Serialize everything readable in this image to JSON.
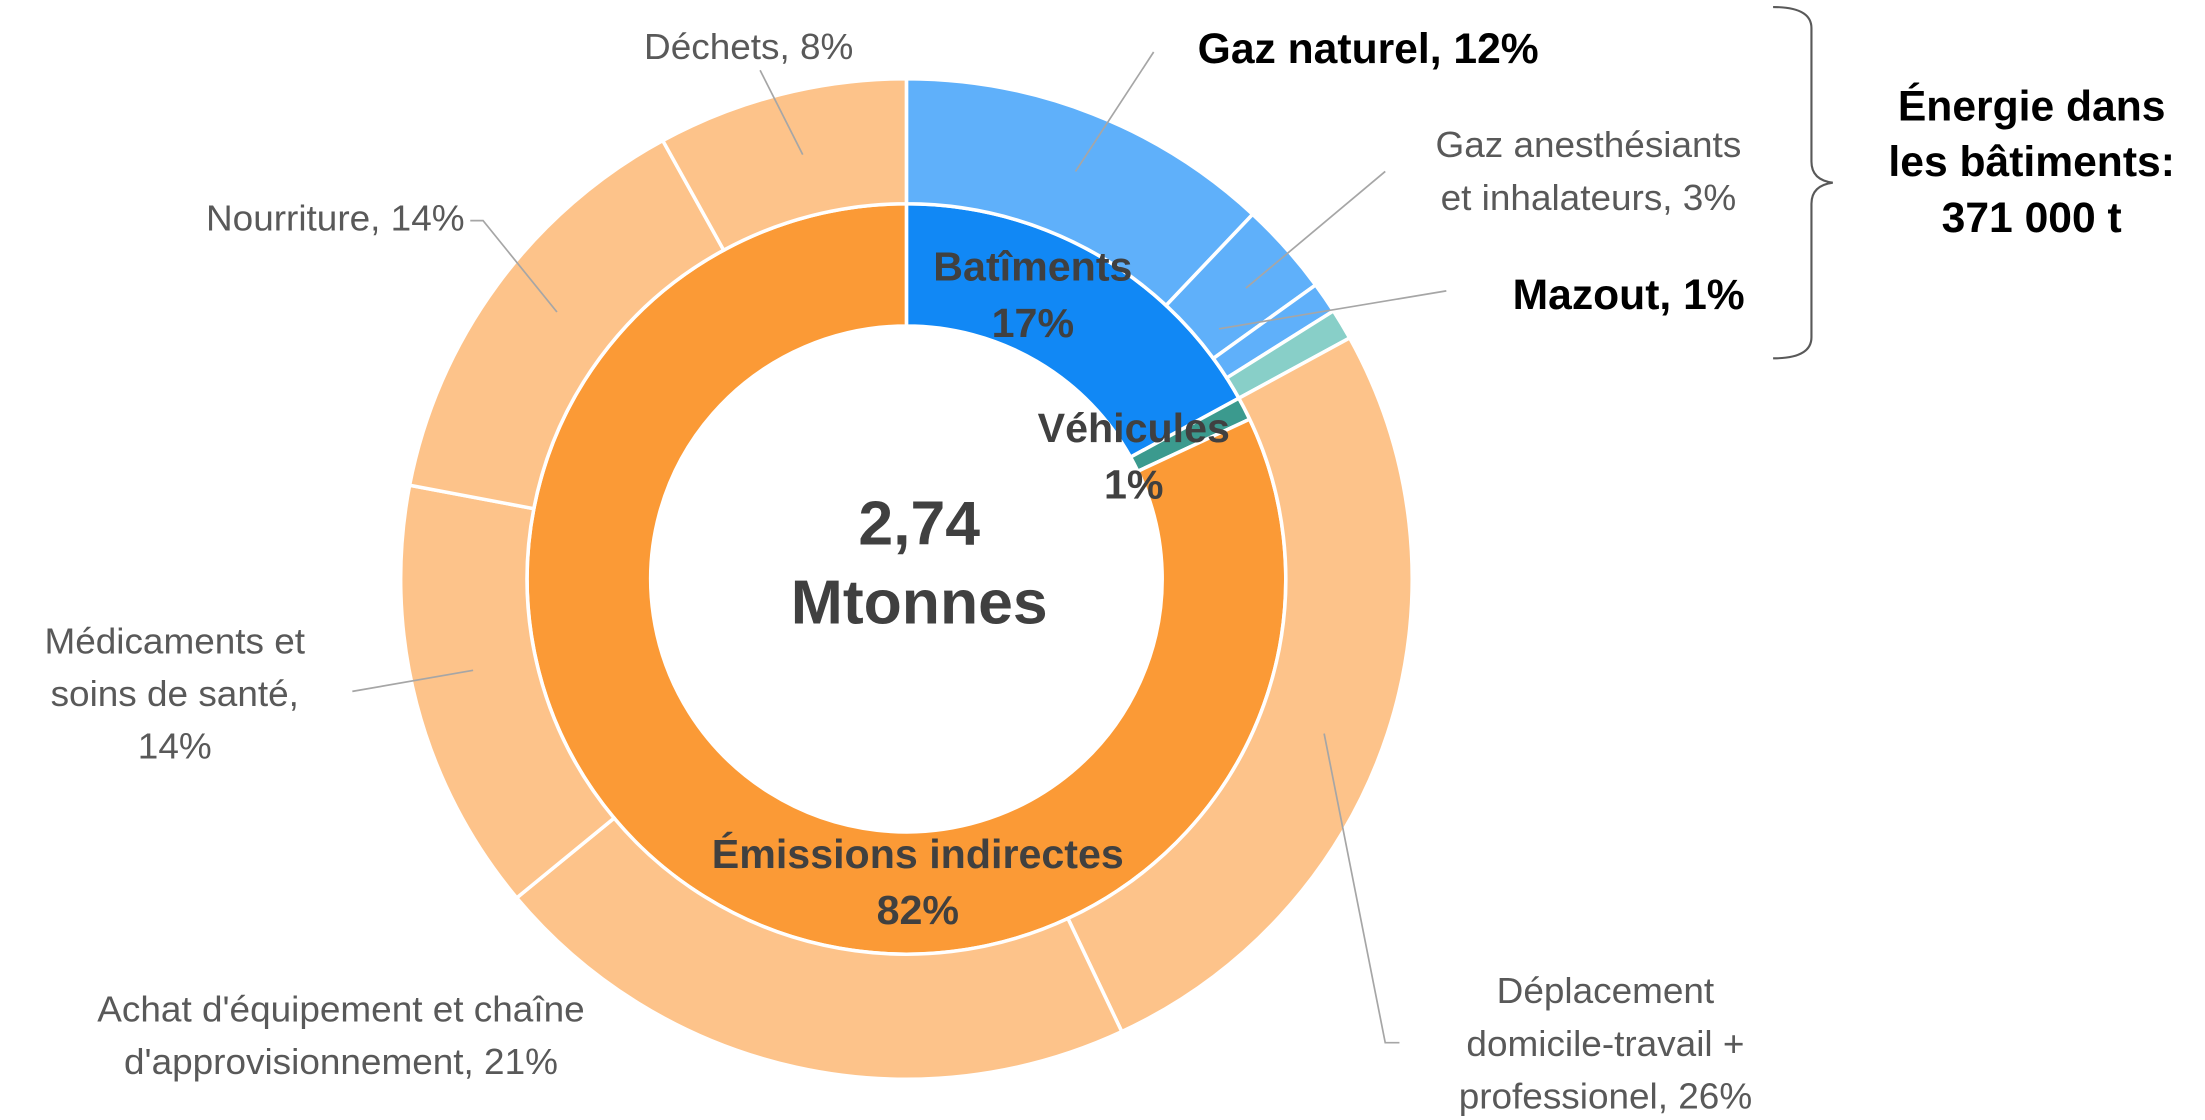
{
  "chart_data": {
    "type": "nested-donut",
    "center_label": [
      "2,74",
      "Mtonnes"
    ],
    "rings": [
      {
        "categories": [
          "Batîments",
          "Véhicules",
          "Émissions indirectes"
        ],
        "values": [
          17,
          1,
          82
        ],
        "value_labels": [
          "17%",
          "1%",
          "82%"
        ],
        "colors": [
          "#1188f5",
          "#3b9a8e",
          "#fb9a36"
        ]
      },
      {
        "labels": [
          [
            "Gaz naturel, 12%"
          ],
          [
            "Gaz anesthésiants",
            "et inhalateurs, 3%"
          ],
          [
            "Mazout, 1%"
          ],
          null,
          [
            "Déplacement",
            "domicile-travail +",
            "professionel, 26%"
          ],
          [
            "Achat d'équipement et chaîne",
            "d'approvisionnement, 21%"
          ],
          [
            "Médicaments et",
            "soins de santé,",
            "14%"
          ],
          [
            "Nourriture, 14%"
          ],
          [
            "Déchets, 8%"
          ]
        ],
        "values": [
          12,
          3,
          1,
          1,
          26,
          21,
          14,
          14,
          8
        ],
        "colors": [
          "#5fb0fa",
          "#5fb0fa",
          "#5fb0fa",
          "#88cfc8",
          "#fdc38a",
          "#fdc38a",
          "#fdc38a",
          "#fdc38a",
          "#fdc38a"
        ]
      }
    ],
    "bracket_label": [
      "Énergie dans",
      "les bâtiments:",
      "371 000 t"
    ]
  }
}
